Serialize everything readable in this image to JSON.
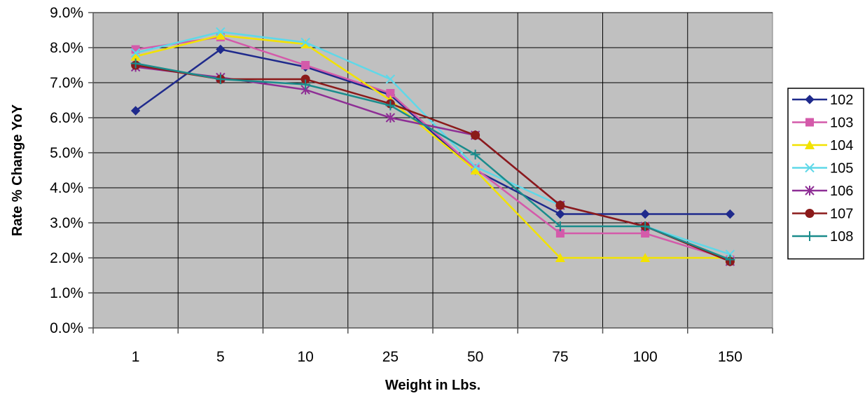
{
  "chart_data": {
    "type": "line",
    "title": "",
    "xlabel": "Weight in Lbs.",
    "ylabel": "Rate % Change YoY",
    "categories": [
      "1",
      "5",
      "10",
      "25",
      "50",
      "75",
      "100",
      "150"
    ],
    "y_ticks": [
      "0.0%",
      "1.0%",
      "2.0%",
      "3.0%",
      "4.0%",
      "5.0%",
      "6.0%",
      "7.0%",
      "8.0%",
      "9.0%"
    ],
    "ylim": [
      0,
      9
    ],
    "grid": true,
    "legend_position": "right",
    "plot_background": "#c0c0c0",
    "series": [
      {
        "name": "102",
        "color": "#1f2a8c",
        "marker": "diamond",
        "values": [
          6.2,
          7.95,
          7.45,
          6.65,
          4.5,
          3.25,
          3.25,
          3.25
        ]
      },
      {
        "name": "103",
        "color": "#d45aaa",
        "marker": "square",
        "values": [
          7.95,
          8.3,
          7.5,
          6.7,
          4.55,
          2.7,
          2.7,
          1.95
        ]
      },
      {
        "name": "104",
        "color": "#f2e200",
        "marker": "triangle",
        "values": [
          7.75,
          8.35,
          8.1,
          6.5,
          4.5,
          2.0,
          2.0,
          2.0
        ]
      },
      {
        "name": "105",
        "color": "#5fd8e8",
        "marker": "x",
        "values": [
          7.85,
          8.45,
          8.15,
          7.1,
          4.6,
          3.5,
          2.9,
          2.1
        ]
      },
      {
        "name": "106",
        "color": "#8e2e95",
        "marker": "star",
        "values": [
          7.45,
          7.15,
          6.8,
          6.0,
          5.5,
          3.5,
          2.9,
          1.9
        ]
      },
      {
        "name": "107",
        "color": "#8b1a1a",
        "marker": "circle",
        "values": [
          7.5,
          7.1,
          7.1,
          6.4,
          5.5,
          3.5,
          2.9,
          1.9
        ]
      },
      {
        "name": "108",
        "color": "#1a8c8c",
        "marker": "plus",
        "values": [
          7.55,
          7.1,
          6.95,
          6.35,
          4.95,
          2.9,
          2.9,
          1.95
        ]
      }
    ]
  }
}
